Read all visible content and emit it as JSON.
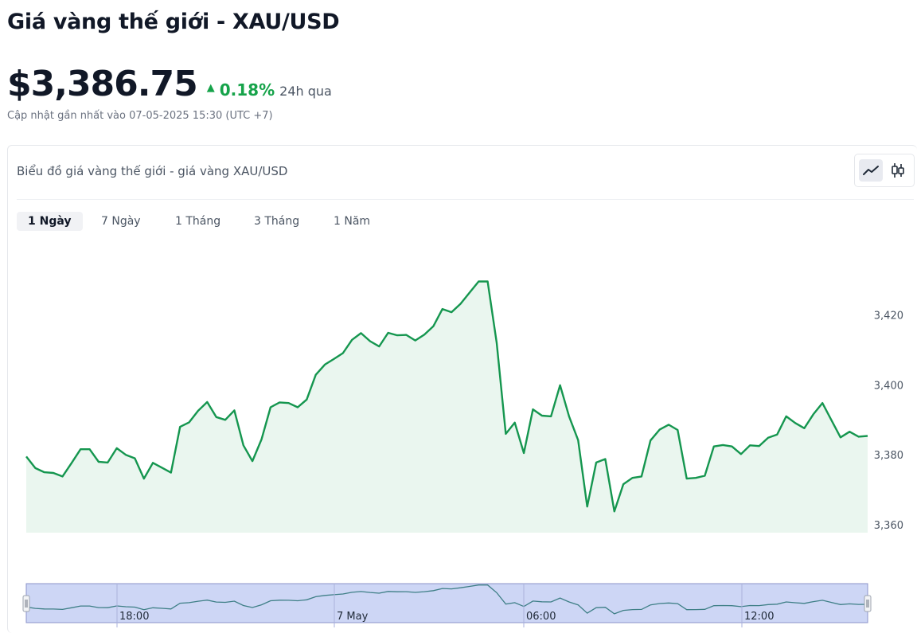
{
  "header": {
    "title": "Giá vàng thế giới - XAU/USD",
    "price": "$3,386.75",
    "change_pct": "0.18%",
    "change_period": "24h qua",
    "updated": "Cập nhật gần nhất vào 07-05-2025 15:30 (UTC +7)"
  },
  "card": {
    "heading": "Biểu đồ giá vàng thế giới - giá vàng XAU/USD",
    "chart_types": [
      {
        "name": "line-chart",
        "icon": "line-chart-icon",
        "active": true
      },
      {
        "name": "candlestick-chart",
        "icon": "candlestick-icon",
        "active": false
      }
    ],
    "tabs": [
      {
        "label": "1 Ngày",
        "active": true
      },
      {
        "label": "7 Ngày",
        "active": false
      },
      {
        "label": "1 Tháng",
        "active": false
      },
      {
        "label": "3 Tháng",
        "active": false
      },
      {
        "label": "1 Năm",
        "active": false
      }
    ]
  },
  "colors": {
    "line": "#15964f",
    "area": "#eaf6ef",
    "positive": "#16a34a",
    "navigator_fill": "#cdd6f5",
    "navigator_border": "#8b93c9"
  },
  "chart_data": {
    "type": "area",
    "y_ticks": [
      3360,
      3380,
      3400,
      3420
    ],
    "y_tick_labels": [
      "3,360",
      "3,380",
      "3,400",
      "3,420"
    ],
    "ylim": [
      3358,
      3436
    ],
    "y_axis_position": "right",
    "navigator_x_labels": [
      "18:00",
      "7 May",
      "06:00",
      "12:00"
    ],
    "values": [
      3379.5,
      3376.2,
      3375.0,
      3374.8,
      3373.8,
      3377.6,
      3381.6,
      3381.6,
      3378.0,
      3377.8,
      3381.9,
      3380.0,
      3379.0,
      3373.2,
      3377.7,
      3376.3,
      3374.9,
      3388.0,
      3389.3,
      3392.6,
      3395.1,
      3390.8,
      3390.0,
      3392.7,
      3382.7,
      3378.2,
      3384.4,
      3393.6,
      3395.0,
      3394.8,
      3393.6,
      3395.8,
      3402.9,
      3405.8,
      3407.4,
      3409.1,
      3412.9,
      3414.8,
      3412.5,
      3411.0,
      3414.9,
      3414.2,
      3414.3,
      3412.7,
      3414.4,
      3416.8,
      3421.7,
      3420.8,
      3423.2,
      3426.4,
      3429.6,
      3429.6,
      3412.0,
      3386.0,
      3389.2,
      3380.5,
      3393.0,
      3391.2,
      3391.0,
      3399.9,
      3391.0,
      3384.2,
      3365.2,
      3377.8,
      3378.8,
      3363.8,
      3371.6,
      3373.4,
      3373.8,
      3384.1,
      3387.2,
      3388.6,
      3387.1,
      3373.2,
      3373.4,
      3374.0,
      3382.4,
      3382.8,
      3382.4,
      3380.2,
      3382.7,
      3382.5,
      3384.9,
      3385.8,
      3391.0,
      3389.1,
      3387.6,
      3391.6,
      3394.8,
      3389.9,
      3385.0,
      3386.6,
      3385.2,
      3385.4
    ]
  }
}
